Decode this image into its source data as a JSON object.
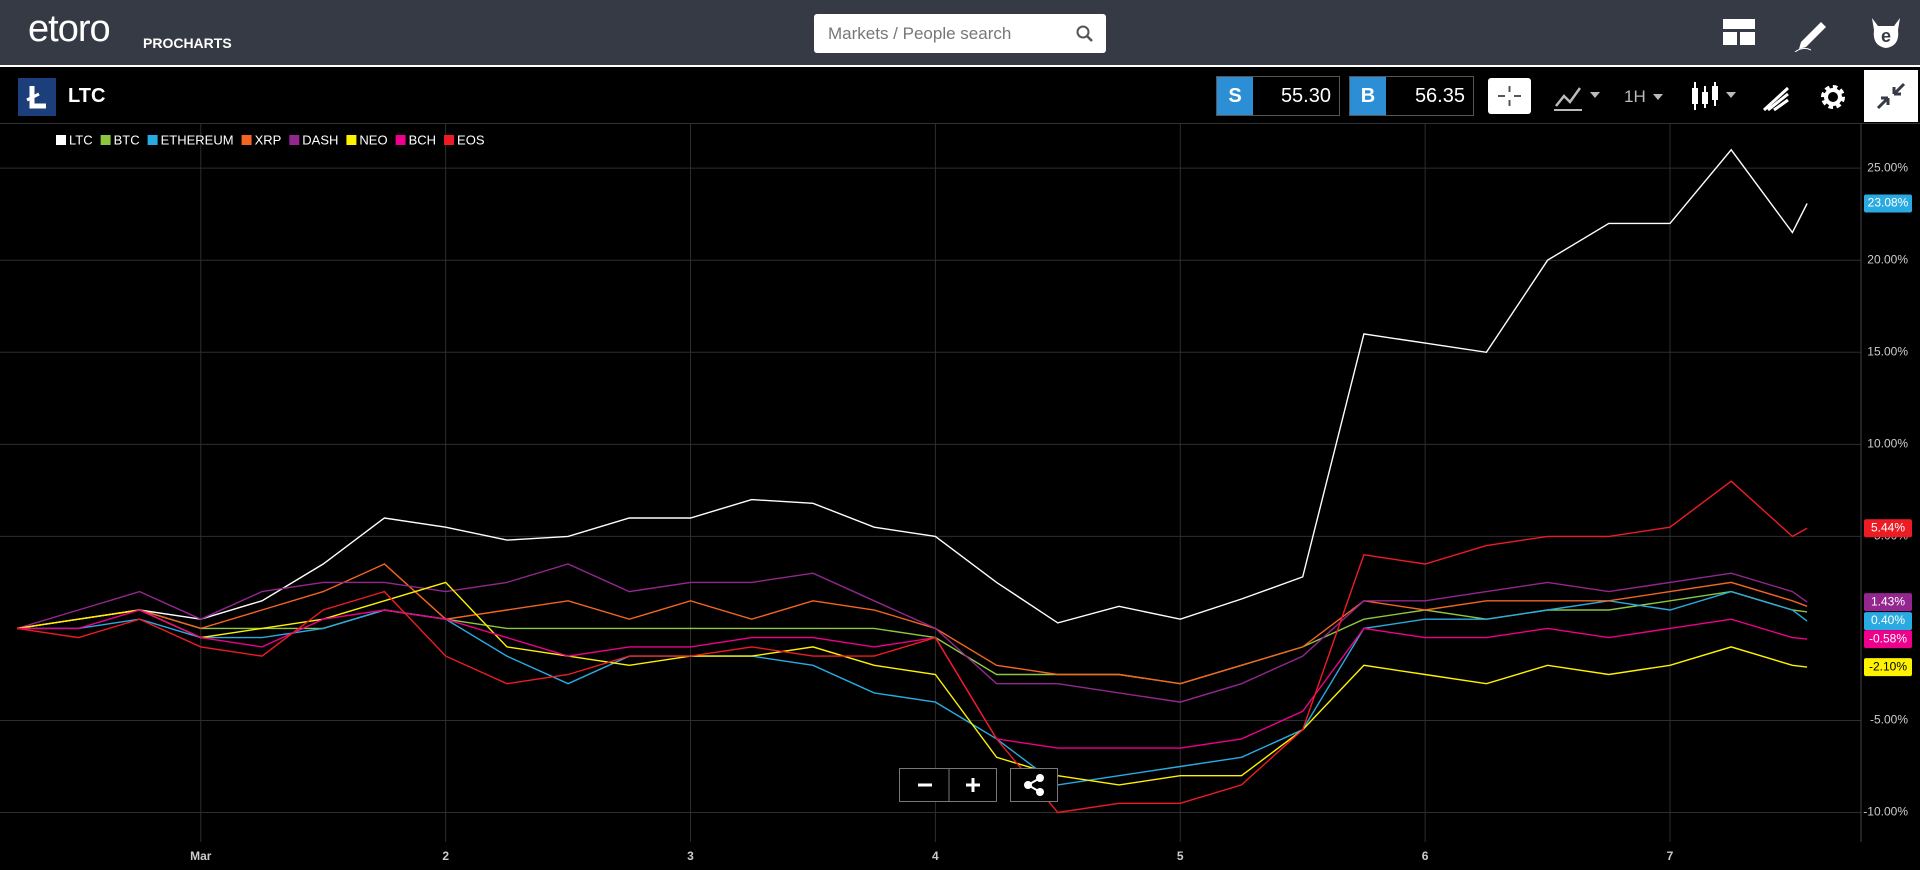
{
  "header": {
    "logo": "etoro",
    "product": "PROCHARTS",
    "search_placeholder": "Markets / People search"
  },
  "toolbar": {
    "instrument": "LTC",
    "sell_label": "S",
    "sell_price": "55.30",
    "buy_label": "B",
    "buy_price": "56.35",
    "timeframe": "1H"
  },
  "chart_data": {
    "type": "line",
    "x": [
      0.25,
      0.5,
      0.75,
      1,
      1.25,
      1.5,
      1.75,
      2,
      2.25,
      2.5,
      2.75,
      3,
      3.25,
      3.5,
      3.75,
      4,
      4.25,
      4.5,
      4.75,
      5,
      5.25,
      5.5,
      5.75,
      6,
      6.25,
      6.5,
      6.75,
      7,
      7.25,
      7.5,
      7.56
    ],
    "xlim": [
      0.18,
      7.78
    ],
    "xticks": [
      {
        "value": 1,
        "label": "Mar"
      },
      2,
      3,
      4,
      5,
      6,
      7
    ],
    "ylim": [
      -11.6,
      27.4
    ],
    "yticks": [
      {
        "value": -10,
        "label": "-10.00%"
      },
      {
        "value": -5,
        "label": "-5.00%"
      },
      {
        "value": 5,
        "label": "5.00%"
      },
      {
        "value": 10,
        "label": "10.00%"
      },
      {
        "value": 15,
        "label": "15.00%"
      },
      {
        "value": 20,
        "label": "20.00%"
      },
      {
        "value": 25,
        "label": "25.00%"
      }
    ],
    "grid": true,
    "legend": "top-left",
    "series": [
      {
        "name": "LTC",
        "color": "#ffffff",
        "values": [
          0,
          0.5,
          1,
          0.5,
          1.5,
          3.5,
          6,
          5.5,
          4.8,
          5,
          6,
          6,
          7,
          6.8,
          5.5,
          5,
          2.5,
          0.3,
          1.2,
          0.5,
          1.6,
          2.8,
          16,
          15.5,
          15,
          20,
          22,
          22,
          26,
          21.5,
          23.08
        ],
        "value_labels": [
          null,
          null,
          null,
          null,
          null,
          null,
          null,
          null,
          null,
          null,
          null,
          null,
          null,
          null,
          null,
          null,
          null,
          null,
          null,
          null,
          null,
          null,
          null,
          null,
          null,
          null,
          null,
          null,
          null,
          null,
          "23.08%"
        ]
      },
      {
        "name": "BTC",
        "color": "#8dc63f",
        "values": [
          0,
          0.5,
          1,
          0,
          0,
          0,
          1,
          0.5,
          0,
          0,
          0,
          0,
          0,
          0,
          0,
          -0.5,
          -2.5,
          -2.5,
          -2.5,
          -3,
          -2,
          -1,
          0.5,
          1,
          0.5,
          1,
          1,
          1.5,
          2,
          1,
          0.9
        ]
      },
      {
        "name": "ETHEREUM",
        "color": "#29abe2",
        "values": [
          0,
          0,
          0.5,
          -0.5,
          -0.5,
          0,
          1,
          0.5,
          -1.5,
          -3,
          -1.5,
          -1.5,
          -1.5,
          -2,
          -3.5,
          -4,
          -6,
          -8.5,
          -8,
          -7.5,
          -7,
          -5.5,
          0,
          0.5,
          0.5,
          1,
          1.5,
          1,
          2,
          1,
          0.4
        ],
        "value_labels": [
          null,
          null,
          null,
          null,
          null,
          null,
          null,
          null,
          null,
          null,
          null,
          null,
          null,
          null,
          null,
          null,
          null,
          null,
          null,
          null,
          null,
          null,
          null,
          null,
          null,
          null,
          null,
          null,
          null,
          null,
          "0.40%"
        ]
      },
      {
        "name": "XRP",
        "color": "#f26522",
        "values": [
          0,
          0.5,
          1,
          0,
          1,
          2,
          3.5,
          0.5,
          1,
          1.5,
          0.5,
          1.5,
          0.5,
          1.5,
          1,
          0,
          -2,
          -2.5,
          -2.5,
          -3,
          -2,
          -1,
          1.5,
          1,
          1.5,
          1.5,
          1.5,
          2,
          2.5,
          1.5,
          1.2
        ]
      },
      {
        "name": "DASH",
        "color": "#93278f",
        "values": [
          0,
          1,
          2,
          0.5,
          2,
          2.5,
          2.5,
          2,
          2.5,
          3.5,
          2,
          2.5,
          2.5,
          3,
          1.5,
          0,
          -3,
          -3,
          -3.5,
          -4,
          -3,
          -1.5,
          1.5,
          1.5,
          2,
          2.5,
          2,
          2.5,
          3,
          2,
          1.43
        ],
        "value_labels": [
          null,
          null,
          null,
          null,
          null,
          null,
          null,
          null,
          null,
          null,
          null,
          null,
          null,
          null,
          null,
          null,
          null,
          null,
          null,
          null,
          null,
          null,
          null,
          null,
          null,
          null,
          null,
          null,
          null,
          null,
          "1.43%"
        ]
      },
      {
        "name": "NEO",
        "color": "#fff200",
        "values": [
          0,
          0.5,
          1,
          -0.5,
          0,
          0.5,
          1.5,
          2.5,
          -1,
          -1.5,
          -2,
          -1.5,
          -1.5,
          -1,
          -2,
          -2.5,
          -7,
          -8,
          -8.5,
          -8,
          -8,
          -5.5,
          -2,
          -2.5,
          -3,
          -2,
          -2.5,
          -2,
          -1,
          -2,
          -2.1
        ],
        "value_labels": [
          null,
          null,
          null,
          null,
          null,
          null,
          null,
          null,
          null,
          null,
          null,
          null,
          null,
          null,
          null,
          null,
          null,
          null,
          null,
          null,
          null,
          null,
          null,
          null,
          null,
          null,
          null,
          null,
          null,
          null,
          "-2.10%"
        ]
      },
      {
        "name": "BCH",
        "color": "#ec008c",
        "values": [
          0,
          0,
          1,
          -0.5,
          -1,
          0.5,
          1,
          0.5,
          -0.5,
          -1.5,
          -1,
          -1,
          -0.5,
          -0.5,
          -1,
          -0.5,
          -6,
          -6.5,
          -6.5,
          -6.5,
          -6,
          -4.5,
          0,
          -0.5,
          -0.5,
          0,
          -0.5,
          0,
          0.5,
          -0.5,
          -0.58
        ],
        "value_labels": [
          null,
          null,
          null,
          null,
          null,
          null,
          null,
          null,
          null,
          null,
          null,
          null,
          null,
          null,
          null,
          null,
          null,
          null,
          null,
          null,
          null,
          null,
          null,
          null,
          null,
          null,
          null,
          null,
          null,
          null,
          "-0.58%"
        ]
      },
      {
        "name": "EOS",
        "color": "#ed1c24",
        "values": [
          0,
          -0.5,
          0.5,
          -1,
          -1.5,
          1,
          2,
          -1.5,
          -3,
          -2.5,
          -1.5,
          -1.5,
          -1,
          -1.5,
          -1.5,
          -0.5,
          -6,
          -10,
          -9.5,
          -9.5,
          -8.5,
          -5.5,
          4,
          3.5,
          4.5,
          5,
          5,
          5.5,
          8,
          5,
          5.44
        ],
        "value_labels": [
          null,
          null,
          null,
          null,
          null,
          null,
          null,
          null,
          null,
          null,
          null,
          null,
          null,
          null,
          null,
          null,
          null,
          null,
          null,
          null,
          null,
          null,
          null,
          null,
          null,
          null,
          null,
          null,
          null,
          null,
          "5.44%"
        ]
      }
    ]
  }
}
